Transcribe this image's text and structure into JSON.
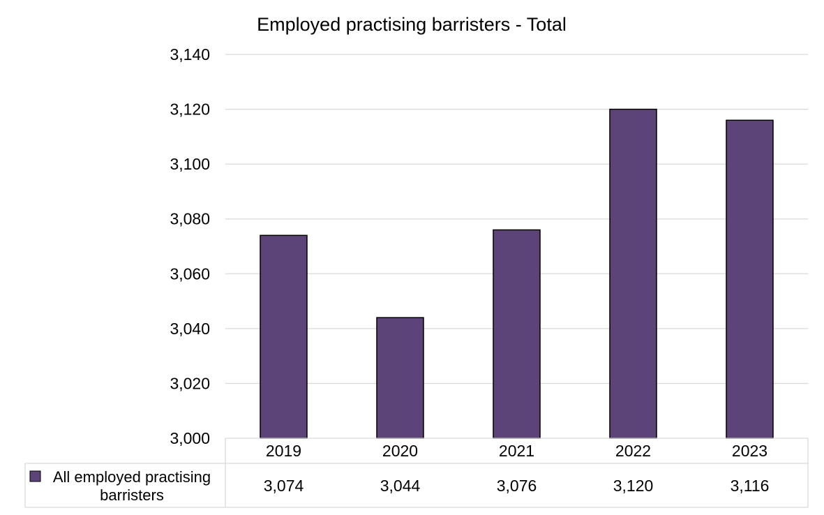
{
  "chart_data": {
    "type": "bar",
    "title": "Employed practising barristers - Total",
    "categories": [
      "2019",
      "2020",
      "2021",
      "2022",
      "2023"
    ],
    "series": [
      {
        "name": "All employed practising barristers",
        "values": [
          3074,
          3044,
          3076,
          3120,
          3116
        ],
        "labels": [
          "3,074",
          "3,044",
          "3,076",
          "3,120",
          "3,116"
        ],
        "color": "#5c4479"
      }
    ],
    "ylim": [
      3000,
      3140
    ],
    "yticks": [
      3000,
      3020,
      3040,
      3060,
      3080,
      3100,
      3120,
      3140
    ],
    "ytick_labels": [
      "3,000",
      "3,020",
      "3,040",
      "3,060",
      "3,080",
      "3,100",
      "3,120",
      "3,140"
    ],
    "grid": true,
    "data_table": true
  },
  "legend_lines": [
    "All employed practising",
    "barristers"
  ]
}
